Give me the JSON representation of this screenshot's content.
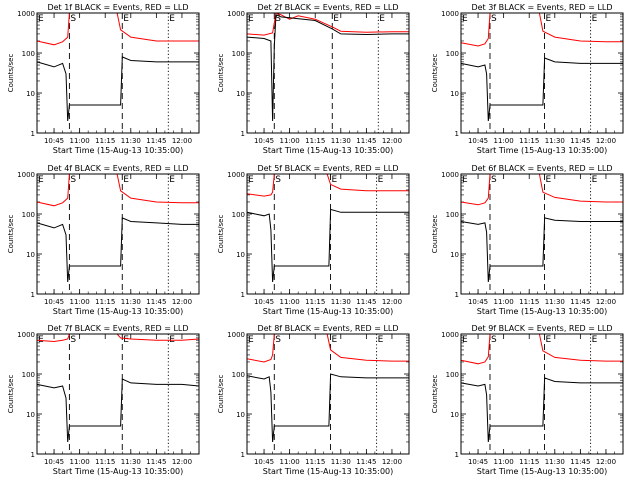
{
  "chart_data": [
    {
      "type": "line",
      "title": "Det 1f BLACK = Events, RED = LLD",
      "xlabel": "Start Time (15-Aug-13 10:35:00)",
      "ylabel": "Counts/sec",
      "ylim": [
        1,
        1000
      ],
      "yscale": "log",
      "xlim": [
        "10:35",
        "12:10"
      ],
      "xticks": [
        "10:45",
        "11:00",
        "11:15",
        "11:30",
        "11:45",
        "12:00"
      ],
      "yticks": [
        "1",
        "10",
        "100",
        "1000"
      ],
      "markers": [
        {
          "label": "E",
          "time": "10:35",
          "style": "dotted"
        },
        {
          "label": "S",
          "time": "10:54",
          "style": "dashed"
        },
        {
          "label": "E",
          "time": "11:25",
          "style": "dashed"
        },
        {
          "label": "E",
          "time": "11:52",
          "style": "dotted"
        }
      ],
      "series": [
        {
          "color": "#ff0000",
          "x": [
            "10:35",
            "10:45",
            "10:50",
            "10:53",
            "10:54",
            "11:22",
            "11:24",
            "11:30",
            "11:45",
            "12:00",
            "12:10"
          ],
          "values": [
            200,
            160,
            190,
            250,
            1000,
            1000,
            380,
            250,
            200,
            200,
            200
          ]
        },
        {
          "color": "#000000",
          "x": [
            "10:35",
            "10:45",
            "10:50",
            "10:52",
            "10:53",
            "10:54",
            "11:24",
            "11:25",
            "11:30",
            "11:45",
            "12:00",
            "12:10"
          ],
          "values": [
            60,
            45,
            55,
            30,
            2,
            5,
            5,
            80,
            65,
            60,
            60,
            60
          ]
        }
      ]
    },
    {
      "type": "line",
      "title": "Det 2f BLACK = Events, RED = LLD",
      "xlabel": "Start Time (15-Aug-13 10:35:00)",
      "ylabel": "Counts/sec",
      "ylim": [
        1,
        1000
      ],
      "yscale": "log",
      "xlim": [
        "10:35",
        "12:10"
      ],
      "xticks": [
        "10:45",
        "11:00",
        "11:15",
        "11:30",
        "11:45",
        "12:00"
      ],
      "yticks": [
        "1",
        "10",
        "100",
        "1000"
      ],
      "markers": [
        {
          "label": "E",
          "time": "10:35",
          "style": "dotted"
        },
        {
          "label": "S",
          "time": "10:51",
          "style": "dashed"
        },
        {
          "label": "E",
          "time": "11:25",
          "style": "dashed"
        },
        {
          "label": "E",
          "time": "11:52",
          "style": "dotted"
        }
      ],
      "series": [
        {
          "color": "#ff0000",
          "x": [
            "10:35",
            "10:45",
            "10:50",
            "10:52",
            "10:55",
            "11:00",
            "11:05",
            "11:15",
            "11:25",
            "11:30",
            "11:45",
            "12:00",
            "12:10"
          ],
          "values": [
            300,
            280,
            320,
            1000,
            900,
            700,
            850,
            700,
            450,
            350,
            330,
            340,
            340
          ]
        },
        {
          "color": "#000000",
          "x": [
            "10:35",
            "10:45",
            "10:49",
            "10:50",
            "10:51",
            "10:52",
            "10:55",
            "11:15",
            "11:25",
            "11:30",
            "11:45",
            "12:00",
            "12:10"
          ],
          "values": [
            250,
            230,
            200,
            2,
            150,
            900,
            800,
            650,
            400,
            300,
            290,
            300,
            300
          ]
        }
      ]
    },
    {
      "type": "line",
      "title": "Det 3f BLACK = Events, RED = LLD",
      "xlabel": "Start Time (15-Aug-13 10:35:00)",
      "ylabel": "Counts/sec",
      "ylim": [
        1,
        1000
      ],
      "yscale": "log",
      "xlim": [
        "10:35",
        "12:10"
      ],
      "xticks": [
        "10:45",
        "11:00",
        "11:15",
        "11:30",
        "11:45",
        "12:00"
      ],
      "yticks": [
        "1",
        "10",
        "100",
        "1000"
      ],
      "markers": [
        {
          "label": "E",
          "time": "10:35",
          "style": "dotted"
        },
        {
          "label": "S",
          "time": "10:52",
          "style": "dashed"
        },
        {
          "label": "E",
          "time": "11:24",
          "style": "dashed"
        },
        {
          "label": "E",
          "time": "11:51",
          "style": "dotted"
        }
      ],
      "series": [
        {
          "color": "#ff0000",
          "x": [
            "10:35",
            "10:45",
            "10:49",
            "10:51",
            "10:52",
            "11:21",
            "11:23",
            "11:30",
            "11:45",
            "12:00",
            "12:10"
          ],
          "values": [
            180,
            150,
            170,
            230,
            1000,
            1000,
            350,
            250,
            200,
            190,
            190
          ]
        },
        {
          "color": "#000000",
          "x": [
            "10:35",
            "10:45",
            "10:49",
            "10:50",
            "10:51",
            "10:52",
            "11:23",
            "11:24",
            "11:30",
            "11:45",
            "12:00",
            "12:10"
          ],
          "values": [
            55,
            45,
            50,
            30,
            2,
            5,
            5,
            75,
            60,
            55,
            55,
            55
          ]
        }
      ]
    },
    {
      "type": "line",
      "title": "Det 4f BLACK = Events, RED = LLD",
      "xlabel": "Start Time (15-Aug-13 10:35:00)",
      "ylabel": "Counts/sec",
      "ylim": [
        1,
        1000
      ],
      "yscale": "log",
      "xlim": [
        "10:35",
        "12:10"
      ],
      "xticks": [
        "10:45",
        "11:00",
        "11:15",
        "11:30",
        "11:45",
        "12:00"
      ],
      "yticks": [
        "1",
        "10",
        "100",
        "1000"
      ],
      "markers": [
        {
          "label": "E",
          "time": "10:35",
          "style": "dotted"
        },
        {
          "label": "S",
          "time": "10:54",
          "style": "dashed"
        },
        {
          "label": "E",
          "time": "11:25",
          "style": "dashed"
        },
        {
          "label": "E",
          "time": "11:52",
          "style": "dotted"
        }
      ],
      "series": [
        {
          "color": "#ff0000",
          "x": [
            "10:35",
            "10:45",
            "10:50",
            "10:53",
            "10:54",
            "11:22",
            "11:24",
            "11:30",
            "11:45",
            "12:00",
            "12:10"
          ],
          "values": [
            200,
            160,
            190,
            250,
            1000,
            1000,
            380,
            250,
            200,
            190,
            190
          ]
        },
        {
          "color": "#000000",
          "x": [
            "10:35",
            "10:45",
            "10:50",
            "10:52",
            "10:53",
            "10:54",
            "11:24",
            "11:25",
            "11:30",
            "11:45",
            "12:00",
            "12:10"
          ],
          "values": [
            60,
            45,
            55,
            30,
            2,
            5,
            5,
            80,
            65,
            60,
            55,
            55
          ]
        }
      ]
    },
    {
      "type": "line",
      "title": "Det 5f BLACK = Events, RED = LLD",
      "xlabel": "Start Time (15-Aug-13 10:35:00)",
      "ylabel": "Counts/sec",
      "ylim": [
        1,
        1000
      ],
      "yscale": "log",
      "xlim": [
        "10:35",
        "12:10"
      ],
      "xticks": [
        "10:45",
        "11:00",
        "11:15",
        "11:30",
        "11:45",
        "12:00"
      ],
      "yticks": [
        "1",
        "10",
        "100",
        "1000"
      ],
      "markers": [
        {
          "label": "E",
          "time": "10:35",
          "style": "dotted"
        },
        {
          "label": "S",
          "time": "10:51",
          "style": "dashed"
        },
        {
          "label": "E",
          "time": "11:24",
          "style": "dashed"
        },
        {
          "label": "E",
          "time": "11:51",
          "style": "dotted"
        }
      ],
      "series": [
        {
          "color": "#ff0000",
          "x": [
            "10:35",
            "10:45",
            "10:49",
            "10:50",
            "10:51",
            "11:22",
            "11:24",
            "11:30",
            "11:45",
            "12:00",
            "12:10"
          ],
          "values": [
            320,
            280,
            300,
            350,
            1000,
            1000,
            550,
            420,
            380,
            380,
            380
          ]
        },
        {
          "color": "#000000",
          "x": [
            "10:35",
            "10:45",
            "10:48",
            "10:49",
            "10:50",
            "10:51",
            "11:23",
            "11:24",
            "11:30",
            "11:45",
            "12:00",
            "12:10"
          ],
          "values": [
            110,
            90,
            100,
            40,
            2,
            5,
            5,
            130,
            110,
            110,
            110,
            110
          ]
        }
      ]
    },
    {
      "type": "line",
      "title": "Det 6f BLACK = Events, RED = LLD",
      "xlabel": "Start Time (15-Aug-13 10:35:00)",
      "ylabel": "Counts/sec",
      "ylim": [
        1,
        1000
      ],
      "yscale": "log",
      "xlim": [
        "10:35",
        "12:10"
      ],
      "xticks": [
        "10:45",
        "11:00",
        "11:15",
        "11:30",
        "11:45",
        "12:00"
      ],
      "yticks": [
        "1",
        "10",
        "100",
        "1000"
      ],
      "markers": [
        {
          "label": "E",
          "time": "10:35",
          "style": "dotted"
        },
        {
          "label": "S",
          "time": "10:52",
          "style": "dashed"
        },
        {
          "label": "E",
          "time": "11:24",
          "style": "dashed"
        },
        {
          "label": "E",
          "time": "11:51",
          "style": "dotted"
        }
      ],
      "series": [
        {
          "color": "#ff0000",
          "x": [
            "10:35",
            "10:45",
            "10:49",
            "10:51",
            "10:52",
            "11:21",
            "11:23",
            "11:30",
            "11:45",
            "12:00",
            "12:10"
          ],
          "values": [
            200,
            170,
            190,
            250,
            1000,
            1000,
            350,
            260,
            210,
            200,
            200
          ]
        },
        {
          "color": "#000000",
          "x": [
            "10:35",
            "10:45",
            "10:49",
            "10:50",
            "10:51",
            "10:52",
            "11:23",
            "11:24",
            "11:30",
            "11:45",
            "12:00",
            "12:10"
          ],
          "values": [
            65,
            55,
            60,
            35,
            2,
            5,
            5,
            80,
            70,
            65,
            65,
            65
          ]
        }
      ]
    },
    {
      "type": "line",
      "title": "Det 7f BLACK = Events, RED = LLD",
      "xlabel": "Start Time (15-Aug-13 10:35:00)",
      "ylabel": "Counts/sec",
      "ylim": [
        1,
        1000
      ],
      "yscale": "log",
      "xlim": [
        "10:35",
        "12:10"
      ],
      "xticks": [
        "10:45",
        "11:00",
        "11:15",
        "11:30",
        "11:45",
        "12:00"
      ],
      "yticks": [
        "1",
        "10",
        "100",
        "1000"
      ],
      "markers": [
        {
          "label": "E",
          "time": "10:35",
          "style": "dotted"
        },
        {
          "label": "S",
          "time": "10:54",
          "style": "dashed"
        },
        {
          "label": "E",
          "time": "11:25",
          "style": "dashed"
        },
        {
          "label": "E",
          "time": "11:52",
          "style": "dotted"
        }
      ],
      "series": [
        {
          "color": "#ff0000",
          "x": [
            "10:35",
            "10:45",
            "10:50",
            "10:53",
            "10:54",
            "11:22",
            "11:24",
            "11:30",
            "11:45",
            "12:00",
            "12:10"
          ],
          "values": [
            700,
            650,
            700,
            750,
            1000,
            1000,
            800,
            750,
            700,
            700,
            750
          ]
        },
        {
          "color": "#000000",
          "x": [
            "10:35",
            "10:45",
            "10:50",
            "10:52",
            "10:53",
            "10:54",
            "11:24",
            "11:25",
            "11:30",
            "11:45",
            "12:00",
            "12:10"
          ],
          "values": [
            55,
            45,
            50,
            25,
            2,
            5,
            5,
            75,
            60,
            55,
            55,
            50
          ]
        }
      ]
    },
    {
      "type": "line",
      "title": "Det 8f BLACK = Events, RED = LLD",
      "xlabel": "Start Time (15-Aug-13 10:35:00)",
      "ylabel": "Counts/sec",
      "ylim": [
        1,
        1000
      ],
      "yscale": "log",
      "xlim": [
        "10:35",
        "12:10"
      ],
      "xticks": [
        "10:45",
        "11:00",
        "11:15",
        "11:30",
        "11:45",
        "12:00"
      ],
      "yticks": [
        "1",
        "10",
        "100",
        "1000"
      ],
      "markers": [
        {
          "label": "E",
          "time": "10:35",
          "style": "dotted"
        },
        {
          "label": "S",
          "time": "10:51",
          "style": "dashed"
        },
        {
          "label": "E",
          "time": "11:24",
          "style": "dashed"
        },
        {
          "label": "E",
          "time": "11:51",
          "style": "dotted"
        }
      ],
      "series": [
        {
          "color": "#ff0000",
          "x": [
            "10:35",
            "10:45",
            "10:49",
            "10:50",
            "10:51",
            "11:22",
            "11:24",
            "11:30",
            "11:45",
            "12:00",
            "12:10"
          ],
          "values": [
            240,
            200,
            230,
            300,
            1000,
            1000,
            400,
            260,
            220,
            210,
            210
          ]
        },
        {
          "color": "#000000",
          "x": [
            "10:35",
            "10:45",
            "10:48",
            "10:49",
            "10:50",
            "10:51",
            "11:23",
            "11:24",
            "11:30",
            "11:45",
            "12:00",
            "12:10"
          ],
          "values": [
            90,
            75,
            85,
            35,
            2,
            5,
            5,
            100,
            85,
            80,
            80,
            80
          ]
        }
      ]
    },
    {
      "type": "line",
      "title": "Det 9f BLACK = Events, RED = LLD",
      "xlabel": "Start Time (15-Aug-13 10:35:00)",
      "ylabel": "Counts/sec",
      "ylim": [
        1,
        1000
      ],
      "yscale": "log",
      "xlim": [
        "10:35",
        "12:10"
      ],
      "xticks": [
        "10:45",
        "11:00",
        "11:15",
        "11:30",
        "11:45",
        "12:00"
      ],
      "yticks": [
        "1",
        "10",
        "100",
        "1000"
      ],
      "markers": [
        {
          "label": "E",
          "time": "10:35",
          "style": "dotted"
        },
        {
          "label": "S",
          "time": "10:52",
          "style": "dashed"
        },
        {
          "label": "E",
          "time": "11:24",
          "style": "dashed"
        },
        {
          "label": "E",
          "time": "11:51",
          "style": "dotted"
        }
      ],
      "series": [
        {
          "color": "#ff0000",
          "x": [
            "10:35",
            "10:45",
            "10:49",
            "10:51",
            "10:52",
            "11:21",
            "11:23",
            "11:30",
            "11:45",
            "12:00",
            "12:10"
          ],
          "values": [
            220,
            180,
            200,
            270,
            1000,
            1000,
            380,
            260,
            220,
            210,
            210
          ]
        },
        {
          "color": "#000000",
          "x": [
            "10:35",
            "10:45",
            "10:49",
            "10:50",
            "10:51",
            "10:52",
            "11:23",
            "11:24",
            "11:30",
            "11:45",
            "12:00",
            "12:10"
          ],
          "values": [
            60,
            50,
            55,
            30,
            2,
            5,
            5,
            80,
            65,
            60,
            60,
            60
          ]
        }
      ]
    }
  ]
}
